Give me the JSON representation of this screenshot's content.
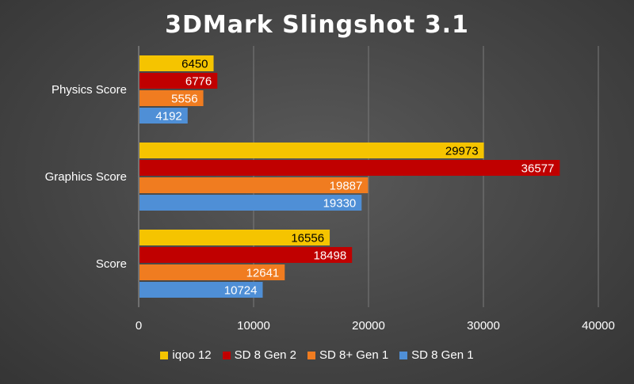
{
  "chart_data": {
    "type": "bar",
    "orientation": "horizontal",
    "title": "3DMark Slingshot 3.1",
    "categories": [
      "Physics Score",
      "Graphics Score",
      "Score"
    ],
    "series": [
      {
        "name": "iqoo 12",
        "color": "#f5c400",
        "values": [
          6450,
          29973,
          16556
        ]
      },
      {
        "name": "SD 8 Gen 2",
        "color": "#c00000",
        "values": [
          6776,
          36577,
          18498
        ]
      },
      {
        "name": "SD 8+ Gen 1",
        "color": "#f07c20",
        "values": [
          5556,
          19887,
          12641
        ]
      },
      {
        "name": "SD 8 Gen 1",
        "color": "#4f8fd6",
        "values": [
          4192,
          19330,
          10724
        ]
      }
    ],
    "xlim": [
      0,
      40000
    ],
    "xticks": [
      "0",
      "10000",
      "20000",
      "30000",
      "40000"
    ],
    "grid": true,
    "legend_position": "bottom",
    "label_colors": [
      "#000000",
      "#ffffff",
      "#ffffff",
      "#ffffff"
    ]
  }
}
